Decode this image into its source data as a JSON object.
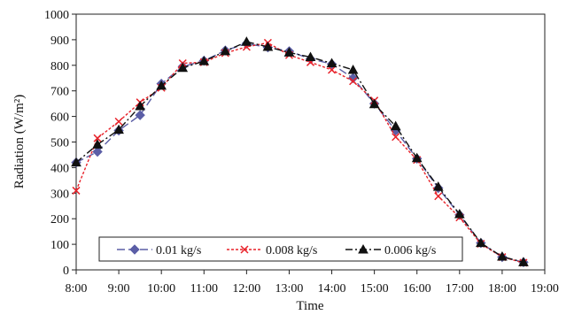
{
  "chart_data": {
    "type": "line",
    "title": "",
    "xlabel": "Time",
    "ylabel": "Radiation (W/m²)",
    "xlim": [
      8,
      19
    ],
    "ylim": [
      0,
      1000
    ],
    "x_ticks": [
      "8:00",
      "9:00",
      "10:00",
      "11:00",
      "12:00",
      "13:00",
      "14:00",
      "15:00",
      "16:00",
      "17:00",
      "18:00",
      "19:00"
    ],
    "y_ticks": [
      "0",
      "100",
      "200",
      "300",
      "400",
      "500",
      "600",
      "700",
      "800",
      "900",
      "1000"
    ],
    "grid": false,
    "legend_position": "bottom",
    "x": [
      8.0,
      8.5,
      9.0,
      9.5,
      10.0,
      10.5,
      11.0,
      11.5,
      12.0,
      12.5,
      13.0,
      13.5,
      14.0,
      14.5,
      15.0,
      15.5,
      16.0,
      16.5,
      17.0,
      17.5,
      18.0,
      18.5
    ],
    "series": [
      {
        "name": "0.01 kg/s",
        "color": "#5b5ea6",
        "marker": "diamond",
        "dash": "long-dash",
        "values": [
          420,
          462,
          545,
          605,
          728,
          795,
          818,
          858,
          885,
          870,
          855,
          825,
          805,
          750,
          650,
          545,
          435,
          320,
          215,
          105,
          50,
          30
        ]
      },
      {
        "name": "0.008 kg/s",
        "color": "#e8222a",
        "marker": "x",
        "dash": "short-dash",
        "values": [
          310,
          515,
          580,
          655,
          712,
          808,
          812,
          848,
          872,
          888,
          840,
          812,
          782,
          738,
          662,
          520,
          430,
          288,
          205,
          102,
          50,
          28
        ]
      },
      {
        "name": "0.006 kg/s",
        "color": "#111111",
        "marker": "triangle",
        "dash": "dash-dot",
        "values": [
          420,
          490,
          548,
          640,
          720,
          790,
          816,
          855,
          892,
          872,
          850,
          832,
          808,
          782,
          648,
          562,
          437,
          325,
          218,
          105,
          52,
          30
        ]
      }
    ]
  }
}
